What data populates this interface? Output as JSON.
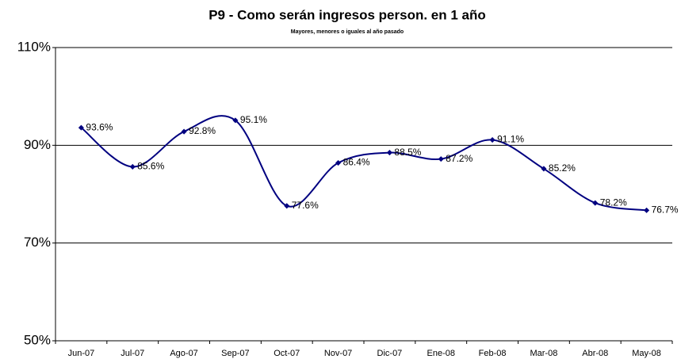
{
  "chart_data": {
    "type": "line",
    "title": "P9 - Como serán ingresos person. en 1 año",
    "subtitle": "Mayores, menores o iguales al año pasado",
    "categories": [
      "Jun-07",
      "Jul-07",
      "Ago-07",
      "Sep-07",
      "Oct-07",
      "Nov-07",
      "Dic-07",
      "Ene-08",
      "Feb-08",
      "Mar-08",
      "Abr-08",
      "May-08"
    ],
    "values": [
      93.6,
      85.6,
      92.8,
      95.1,
      77.6,
      86.4,
      88.5,
      87.2,
      91.1,
      85.2,
      78.2,
      76.7
    ],
    "value_labels": [
      "93.6%",
      "85.6%",
      "92.8%",
      "95.1%",
      "77.6%",
      "86.4%",
      "88.5%",
      "87.2%",
      "91.1%",
      "85.2%",
      "78.2%",
      "76.7%"
    ],
    "color": "#000080",
    "smooth": true,
    "ylim": [
      50,
      110
    ],
    "yticks": [
      {
        "value": 50,
        "label": "50%"
      },
      {
        "value": 70,
        "label": "70%"
      },
      {
        "value": 90,
        "label": "90%"
      },
      {
        "value": 110,
        "label": "110%"
      }
    ],
    "grid": true
  }
}
